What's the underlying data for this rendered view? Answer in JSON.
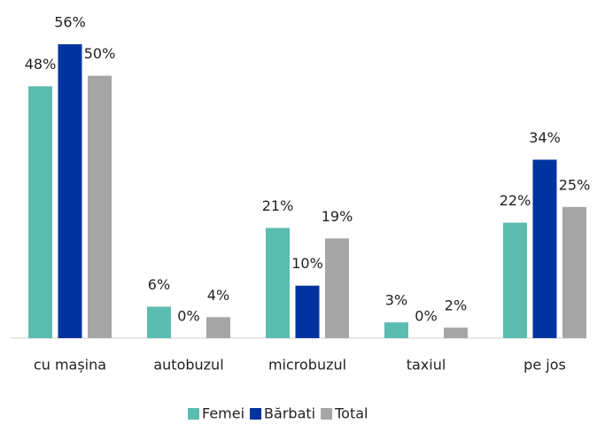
{
  "chart_data": {
    "type": "bar",
    "categories": [
      "cu mașina",
      "autobuzul",
      "microbuzul",
      "taxiul",
      "pe jos"
    ],
    "series": [
      {
        "name": "Femei",
        "color": "#5bbcb0",
        "values": [
          48,
          6,
          21,
          3,
          22
        ],
        "value_labels": [
          "48%",
          "6%",
          "21%",
          "3%",
          "22%"
        ]
      },
      {
        "name": "Bărbati",
        "color": "#0033a0",
        "values": [
          56,
          0,
          10,
          0,
          34
        ],
        "value_labels": [
          "56%",
          "0%",
          "10%",
          "0%",
          "34%"
        ]
      },
      {
        "name": "Total",
        "color": "#a6a6a6",
        "values": [
          50,
          4,
          19,
          2,
          25
        ],
        "value_labels": [
          "50%",
          "4%",
          "19%",
          "2%",
          "25%"
        ]
      }
    ],
    "ylim": [
      0,
      56
    ],
    "legend": "bottom"
  }
}
